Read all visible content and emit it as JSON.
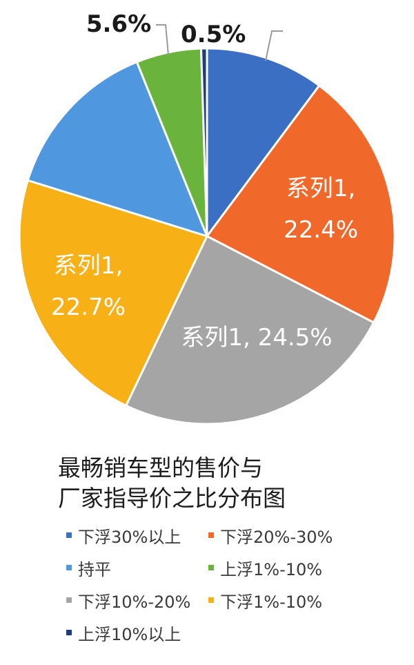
{
  "chart_data": {
    "type": "pie",
    "title_lines": [
      "最畅销车型的售价与",
      "厂家指导价之比分布图"
    ],
    "series_name": "系列1",
    "slices": [
      {
        "label": "下浮30%以上",
        "value": 10.2,
        "color": "#3a6fc4",
        "data_label": ""
      },
      {
        "label": "下浮20%-30%",
        "value": 22.4,
        "color": "#f0692b",
        "data_label": "系列1,|22.4%"
      },
      {
        "label": "下浮10%-20%",
        "value": 24.5,
        "color": "#a5a5a5",
        "data_label": "系列1, 24.5%"
      },
      {
        "label": "下浮1%-10%",
        "value": 22.7,
        "color": "#f7b117",
        "data_label": "系列1,|22.7%"
      },
      {
        "label": "持平",
        "value": 14.1,
        "color": "#4f98e0",
        "data_label": ""
      },
      {
        "label": "上浮1%-10%",
        "value": 5.6,
        "color": "#6ab43e",
        "data_label": "5.6%"
      },
      {
        "label": "上浮10%以上",
        "value": 0.5,
        "color": "#1f3d7a",
        "data_label": "0.5%"
      }
    ],
    "legend": [
      {
        "label": "下浮30%以上",
        "color": "#3a6fc4"
      },
      {
        "label": "下浮20%-30%",
        "color": "#f0692b"
      },
      {
        "label": "持平",
        "color": "#4f98e0"
      },
      {
        "label": "上浮1%-10%",
        "color": "#6ab43e"
      },
      {
        "label": "下浮10%-20%",
        "color": "#a5a5a5"
      },
      {
        "label": "下浮1%-10%",
        "color": "#f7b117"
      },
      {
        "label": "上浮10%以上",
        "color": "#1f3d7a"
      }
    ]
  }
}
